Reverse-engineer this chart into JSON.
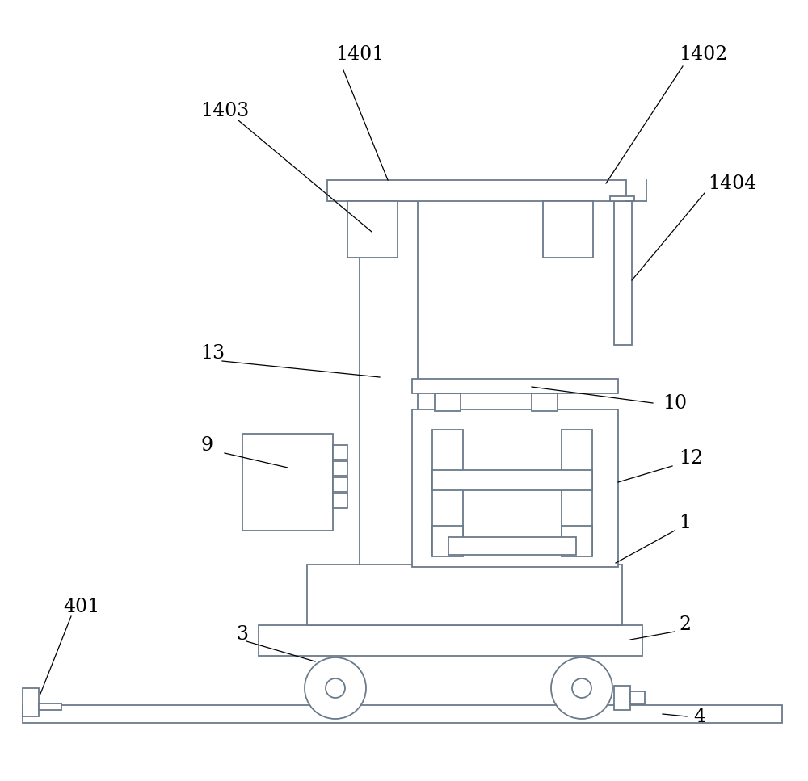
{
  "bg_color": "#ffffff",
  "line_color": "#6a7a8a",
  "line_width": 1.3,
  "fig_width": 10.0,
  "fig_height": 9.67
}
